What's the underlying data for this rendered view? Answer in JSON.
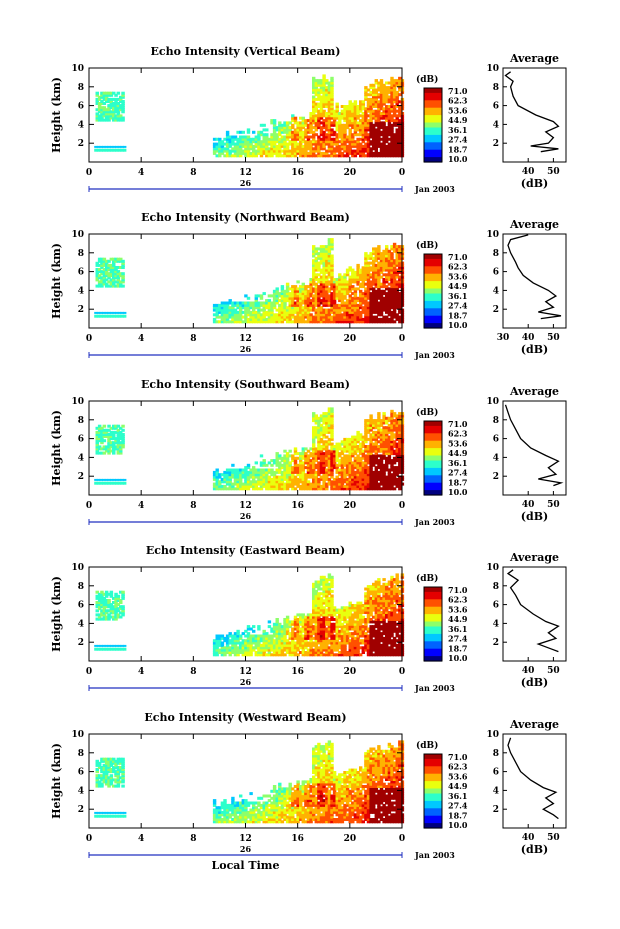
{
  "chart_data": [
    {
      "type": "heatmap",
      "title": "Echo Intensity (Vertical Beam)",
      "ylabel": "Height (km)",
      "xlabel": "",
      "ylim": [
        0,
        10
      ],
      "xlim": [
        0,
        24
      ],
      "y_ticks": [
        "2",
        "4",
        "6",
        "8",
        "10"
      ],
      "x_ticks": [
        "0",
        "4",
        "8",
        "12",
        "16",
        "20",
        "0"
      ],
      "day_label": "26",
      "date_label": "Jan 2003",
      "colorbar": {
        "unit": "(dB)",
        "labels": [
          "71.0",
          "62.3",
          "53.6",
          "44.9",
          "36.1",
          "27.4",
          "18.7",
          "10.0"
        ]
      },
      "average": {
        "title": "Average",
        "xlabel": "(dB)",
        "x_ticks": [
          "40",
          "50"
        ],
        "xlim": [
          30,
          55
        ],
        "profile": [
          [
            45,
            1.1
          ],
          [
            52,
            1.4
          ],
          [
            41,
            1.7
          ],
          [
            48,
            2.0
          ],
          [
            50,
            2.6
          ],
          [
            47,
            3.2
          ],
          [
            52,
            3.8
          ],
          [
            50,
            4.3
          ],
          [
            43,
            5.0
          ],
          [
            36,
            6.0
          ],
          [
            34,
            7.0
          ],
          [
            33,
            8.0
          ],
          [
            34,
            8.6
          ],
          [
            31,
            9.2
          ],
          [
            33,
            9.6
          ]
        ]
      }
    },
    {
      "type": "heatmap",
      "title": "Echo Intensity (Northward Beam)",
      "ylabel": "Height (km)",
      "xlabel": "",
      "ylim": [
        0,
        10
      ],
      "xlim": [
        0,
        24
      ],
      "y_ticks": [
        "2",
        "4",
        "6",
        "8",
        "10"
      ],
      "x_ticks": [
        "0",
        "4",
        "8",
        "12",
        "16",
        "20",
        "0"
      ],
      "day_label": "26",
      "date_label": "Jan 2003",
      "colorbar": {
        "unit": "(dB)",
        "labels": [
          "71.0",
          "62.3",
          "53.6",
          "44.9",
          "36.1",
          "27.4",
          "18.7",
          "10.0"
        ]
      },
      "average": {
        "title": "Average",
        "xlabel": "(dB)",
        "x_ticks": [
          "30",
          "40",
          "50"
        ],
        "xlim": [
          30,
          55
        ],
        "profile": [
          [
            45,
            1.0
          ],
          [
            53,
            1.3
          ],
          [
            44,
            1.7
          ],
          [
            50,
            2.2
          ],
          [
            47,
            2.8
          ],
          [
            51,
            3.4
          ],
          [
            48,
            4.0
          ],
          [
            42,
            4.8
          ],
          [
            38,
            5.6
          ],
          [
            36,
            6.4
          ],
          [
            35,
            7.0
          ],
          [
            33,
            8.0
          ],
          [
            32,
            8.8
          ],
          [
            33,
            9.4
          ],
          [
            40,
            9.9
          ]
        ]
      }
    },
    {
      "type": "heatmap",
      "title": "Echo Intensity (Southward Beam)",
      "ylabel": "Height (km)",
      "xlabel": "",
      "ylim": [
        0,
        10
      ],
      "xlim": [
        0,
        24
      ],
      "y_ticks": [
        "2",
        "4",
        "6",
        "8",
        "10"
      ],
      "x_ticks": [
        "0",
        "4",
        "8",
        "12",
        "16",
        "20",
        "0"
      ],
      "day_label": "26",
      "date_label": "Jan 2003",
      "colorbar": {
        "unit": "(dB)",
        "labels": [
          "71.0",
          "62.3",
          "53.6",
          "44.9",
          "36.1",
          "27.4",
          "18.7",
          "10.0"
        ]
      },
      "average": {
        "title": "Average",
        "xlabel": "(dB)",
        "x_ticks": [
          "40",
          "50"
        ],
        "xlim": [
          30,
          55
        ],
        "profile": [
          [
            50,
            1.0
          ],
          [
            53,
            1.3
          ],
          [
            44,
            1.7
          ],
          [
            51,
            2.2
          ],
          [
            48,
            2.9
          ],
          [
            52,
            3.6
          ],
          [
            47,
            4.2
          ],
          [
            41,
            5.0
          ],
          [
            37,
            6.0
          ],
          [
            35,
            7.0
          ],
          [
            33,
            8.0
          ],
          [
            32,
            8.8
          ],
          [
            31,
            9.6
          ]
        ]
      }
    },
    {
      "type": "heatmap",
      "title": "Echo Intensity (Eastward Beam)",
      "ylabel": "Height (km)",
      "xlabel": "",
      "ylim": [
        0,
        10
      ],
      "xlim": [
        0,
        24
      ],
      "y_ticks": [
        "2",
        "4",
        "6",
        "8",
        "10"
      ],
      "x_ticks": [
        "0",
        "4",
        "8",
        "12",
        "16",
        "20",
        "0"
      ],
      "day_label": "26",
      "date_label": "Jan 2003",
      "colorbar": {
        "unit": "(dB)",
        "labels": [
          "71.0",
          "62.3",
          "53.6",
          "44.9",
          "36.1",
          "27.4",
          "18.7",
          "10.0"
        ]
      },
      "average": {
        "title": "Average",
        "xlabel": "(dB)",
        "x_ticks": [
          "40",
          "50"
        ],
        "xlim": [
          30,
          55
        ],
        "profile": [
          [
            52,
            1.0
          ],
          [
            49,
            1.3
          ],
          [
            44,
            1.8
          ],
          [
            51,
            2.4
          ],
          [
            48,
            3.0
          ],
          [
            52,
            3.7
          ],
          [
            47,
            4.2
          ],
          [
            42,
            5.0
          ],
          [
            37,
            6.0
          ],
          [
            35,
            7.0
          ],
          [
            33,
            7.8
          ],
          [
            36,
            8.6
          ],
          [
            32,
            9.3
          ],
          [
            34,
            9.7
          ]
        ]
      }
    },
    {
      "type": "heatmap",
      "title": "Echo Intensity (Westward Beam)",
      "ylabel": "Height (km)",
      "xlabel": "Local Time",
      "ylim": [
        0,
        10
      ],
      "xlim": [
        0,
        24
      ],
      "y_ticks": [
        "2",
        "4",
        "6",
        "8",
        "10"
      ],
      "x_ticks": [
        "0",
        "4",
        "8",
        "12",
        "16",
        "20",
        "0"
      ],
      "day_label": "26",
      "date_label": "Jan 2003",
      "colorbar": {
        "unit": "(dB)",
        "labels": [
          "71.0",
          "62.3",
          "53.6",
          "44.9",
          "36.1",
          "27.4",
          "18.7",
          "10.0"
        ]
      },
      "average": {
        "title": "Average",
        "xlabel": "(dB)",
        "x_ticks": [
          "40",
          "50"
        ],
        "xlim": [
          30,
          55
        ],
        "profile": [
          [
            52,
            1.0
          ],
          [
            50,
            1.4
          ],
          [
            46,
            2.0
          ],
          [
            50,
            2.6
          ],
          [
            47,
            3.2
          ],
          [
            51,
            3.8
          ],
          [
            46,
            4.3
          ],
          [
            41,
            5.1
          ],
          [
            37,
            6.0
          ],
          [
            35,
            7.0
          ],
          [
            33,
            8.0
          ],
          [
            32,
            8.8
          ],
          [
            33,
            9.6
          ]
        ]
      }
    }
  ]
}
